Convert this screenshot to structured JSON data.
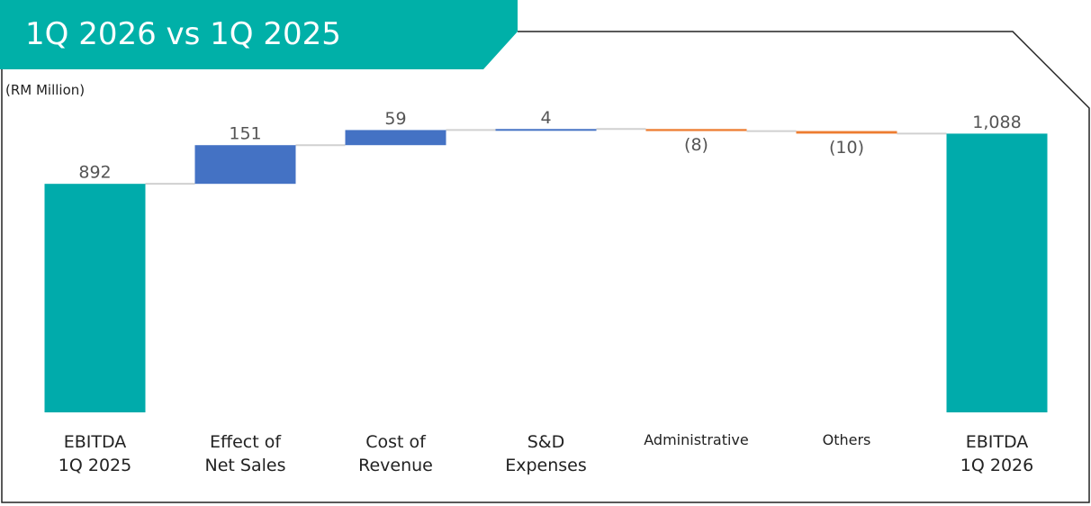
{
  "chart_data": {
    "type": "waterfall",
    "title": "1Q 2026 vs 1Q 2025",
    "subtitle": "(RM Million)",
    "categories": [
      "EBITDA\n1Q 2025",
      "Effect of\nNet Sales",
      "Cost of\nRevenue",
      "S&D\nExpenses",
      "Administrative",
      "Others",
      "EBITDA\n1Q 2026"
    ],
    "values": [
      892,
      151,
      59,
      4,
      -8,
      -10,
      1088
    ],
    "value_labels": [
      "892",
      "151",
      "59",
      "4",
      "(8)",
      "(10)",
      "1,088"
    ],
    "totals": [
      true,
      false,
      false,
      false,
      false,
      false,
      true
    ],
    "colors": {
      "total": "#00abab",
      "increase": "#4472c4",
      "decrease": "#ed7d31"
    },
    "ylim": [
      0,
      1100
    ]
  }
}
